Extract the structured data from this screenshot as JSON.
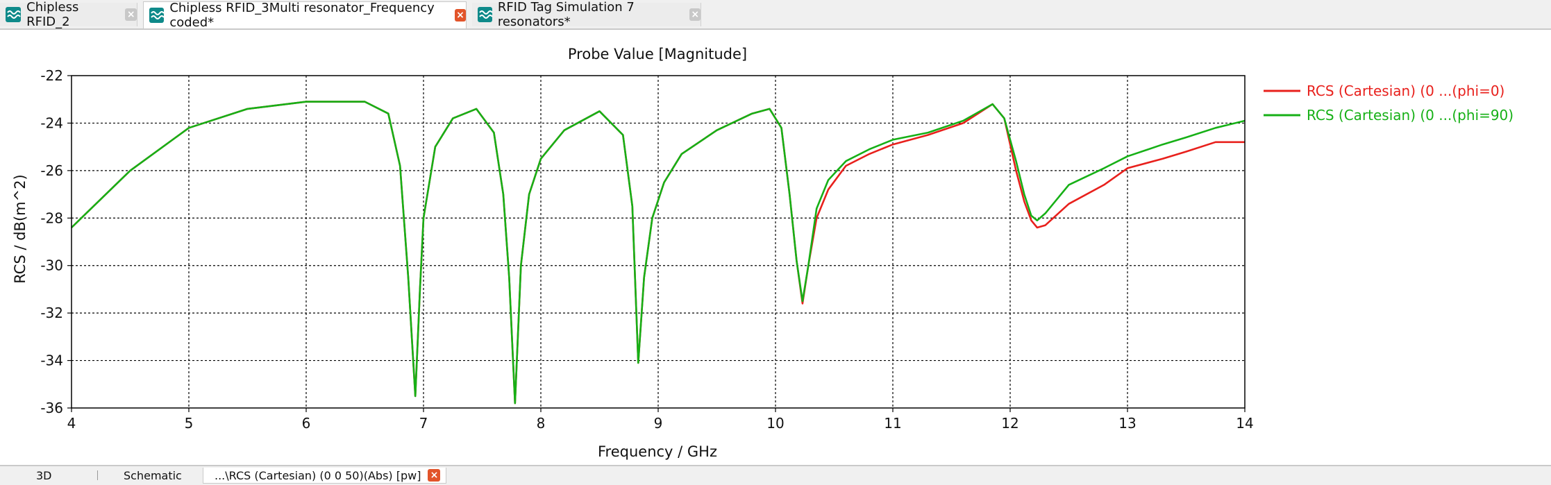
{
  "tabs": [
    {
      "label": "Chipless RFID_2",
      "active": false
    },
    {
      "label": "Chipless RFID_3Multi resonator_Frequency coded*",
      "active": true
    },
    {
      "label": "RFID Tag Simulation 7 resonators*",
      "active": false
    }
  ],
  "bottom_tabs": [
    {
      "label": "3D",
      "active": false
    },
    {
      "label": "Schematic",
      "active": false
    },
    {
      "label": "...\\RCS (Cartesian) (0 0 50)(Abs) [pw]",
      "active": true
    }
  ],
  "close_glyph": "×",
  "chart_data": {
    "type": "line",
    "title": "Probe Value [Magnitude]",
    "xlabel": "Frequency / GHz",
    "ylabel": "RCS / dB(m^2)",
    "xlim": [
      4,
      14
    ],
    "ylim": [
      -36,
      -22
    ],
    "xticks": [
      "4",
      "5",
      "6",
      "7",
      "8",
      "9",
      "10",
      "11",
      "12",
      "13",
      "14"
    ],
    "yticks": [
      "-22",
      "-24",
      "-26",
      "-28",
      "-30",
      "-32",
      "-34",
      "-36"
    ],
    "grid": true,
    "legend_position": "right",
    "series": [
      {
        "name": "RCS (Cartesian) (0 ...(phi=0)",
        "color": "#e8201c",
        "x": [
          4,
          4.5,
          5,
          5.5,
          6,
          6.5,
          6.7,
          6.8,
          6.87,
          6.93,
          6.97,
          7.0,
          7.1,
          7.25,
          7.45,
          7.6,
          7.68,
          7.73,
          7.78,
          7.83,
          7.9,
          8.0,
          8.2,
          8.5,
          8.7,
          8.78,
          8.83,
          8.88,
          8.95,
          9.05,
          9.2,
          9.5,
          9.8,
          9.95,
          10.05,
          10.12,
          10.18,
          10.23,
          10.28,
          10.35,
          10.45,
          10.6,
          10.8,
          11.0,
          11.3,
          11.6,
          11.85,
          11.95,
          12.05,
          12.12,
          12.18,
          12.23,
          12.3,
          12.5,
          12.8,
          13.0,
          13.3,
          13.5,
          13.75,
          14.0
        ],
        "y": [
          -28.4,
          -26.0,
          -24.2,
          -23.4,
          -23.1,
          -23.1,
          -23.6,
          -25.8,
          -30.5,
          -35.5,
          -31.0,
          -28.0,
          -25.0,
          -23.8,
          -23.4,
          -24.4,
          -27.0,
          -30.5,
          -35.8,
          -30.0,
          -27.0,
          -25.5,
          -24.3,
          -23.5,
          -24.5,
          -27.5,
          -34.1,
          -30.5,
          -28.0,
          -26.5,
          -25.3,
          -24.3,
          -23.6,
          -23.4,
          -24.2,
          -27.0,
          -29.8,
          -31.6,
          -30.0,
          -28.0,
          -26.8,
          -25.8,
          -25.3,
          -24.9,
          -24.5,
          -24.0,
          -23.2,
          -23.8,
          -26.0,
          -27.3,
          -28.1,
          -28.4,
          -28.3,
          -27.4,
          -26.6,
          -25.9,
          -25.5,
          -25.2,
          -24.8,
          -24.8
        ]
      },
      {
        "name": "RCS (Cartesian) (0 ...(phi=90)",
        "color": "#16b016",
        "x": [
          4,
          4.5,
          5,
          5.5,
          6,
          6.5,
          6.7,
          6.8,
          6.87,
          6.93,
          6.97,
          7.0,
          7.1,
          7.25,
          7.45,
          7.6,
          7.68,
          7.73,
          7.78,
          7.83,
          7.9,
          8.0,
          8.2,
          8.5,
          8.7,
          8.78,
          8.83,
          8.88,
          8.95,
          9.05,
          9.2,
          9.5,
          9.8,
          9.95,
          10.05,
          10.12,
          10.18,
          10.23,
          10.28,
          10.35,
          10.45,
          10.6,
          10.8,
          11.0,
          11.3,
          11.6,
          11.85,
          11.95,
          12.05,
          12.12,
          12.18,
          12.23,
          12.3,
          12.5,
          12.8,
          13.0,
          13.3,
          13.5,
          13.75,
          14.0
        ],
        "y": [
          -28.4,
          -26.0,
          -24.2,
          -23.4,
          -23.1,
          -23.1,
          -23.6,
          -25.8,
          -30.5,
          -35.5,
          -31.0,
          -28.0,
          -25.0,
          -23.8,
          -23.4,
          -24.4,
          -27.0,
          -30.5,
          -35.8,
          -30.0,
          -27.0,
          -25.5,
          -24.3,
          -23.5,
          -24.5,
          -27.5,
          -34.1,
          -30.5,
          -28.0,
          -26.5,
          -25.3,
          -24.3,
          -23.6,
          -23.4,
          -24.2,
          -27.0,
          -29.8,
          -31.5,
          -30.0,
          -27.6,
          -26.4,
          -25.6,
          -25.1,
          -24.7,
          -24.4,
          -23.9,
          -23.2,
          -23.8,
          -25.6,
          -27.0,
          -27.9,
          -28.1,
          -27.8,
          -26.6,
          -25.9,
          -25.4,
          -24.9,
          -24.6,
          -24.2,
          -23.9
        ]
      }
    ]
  }
}
